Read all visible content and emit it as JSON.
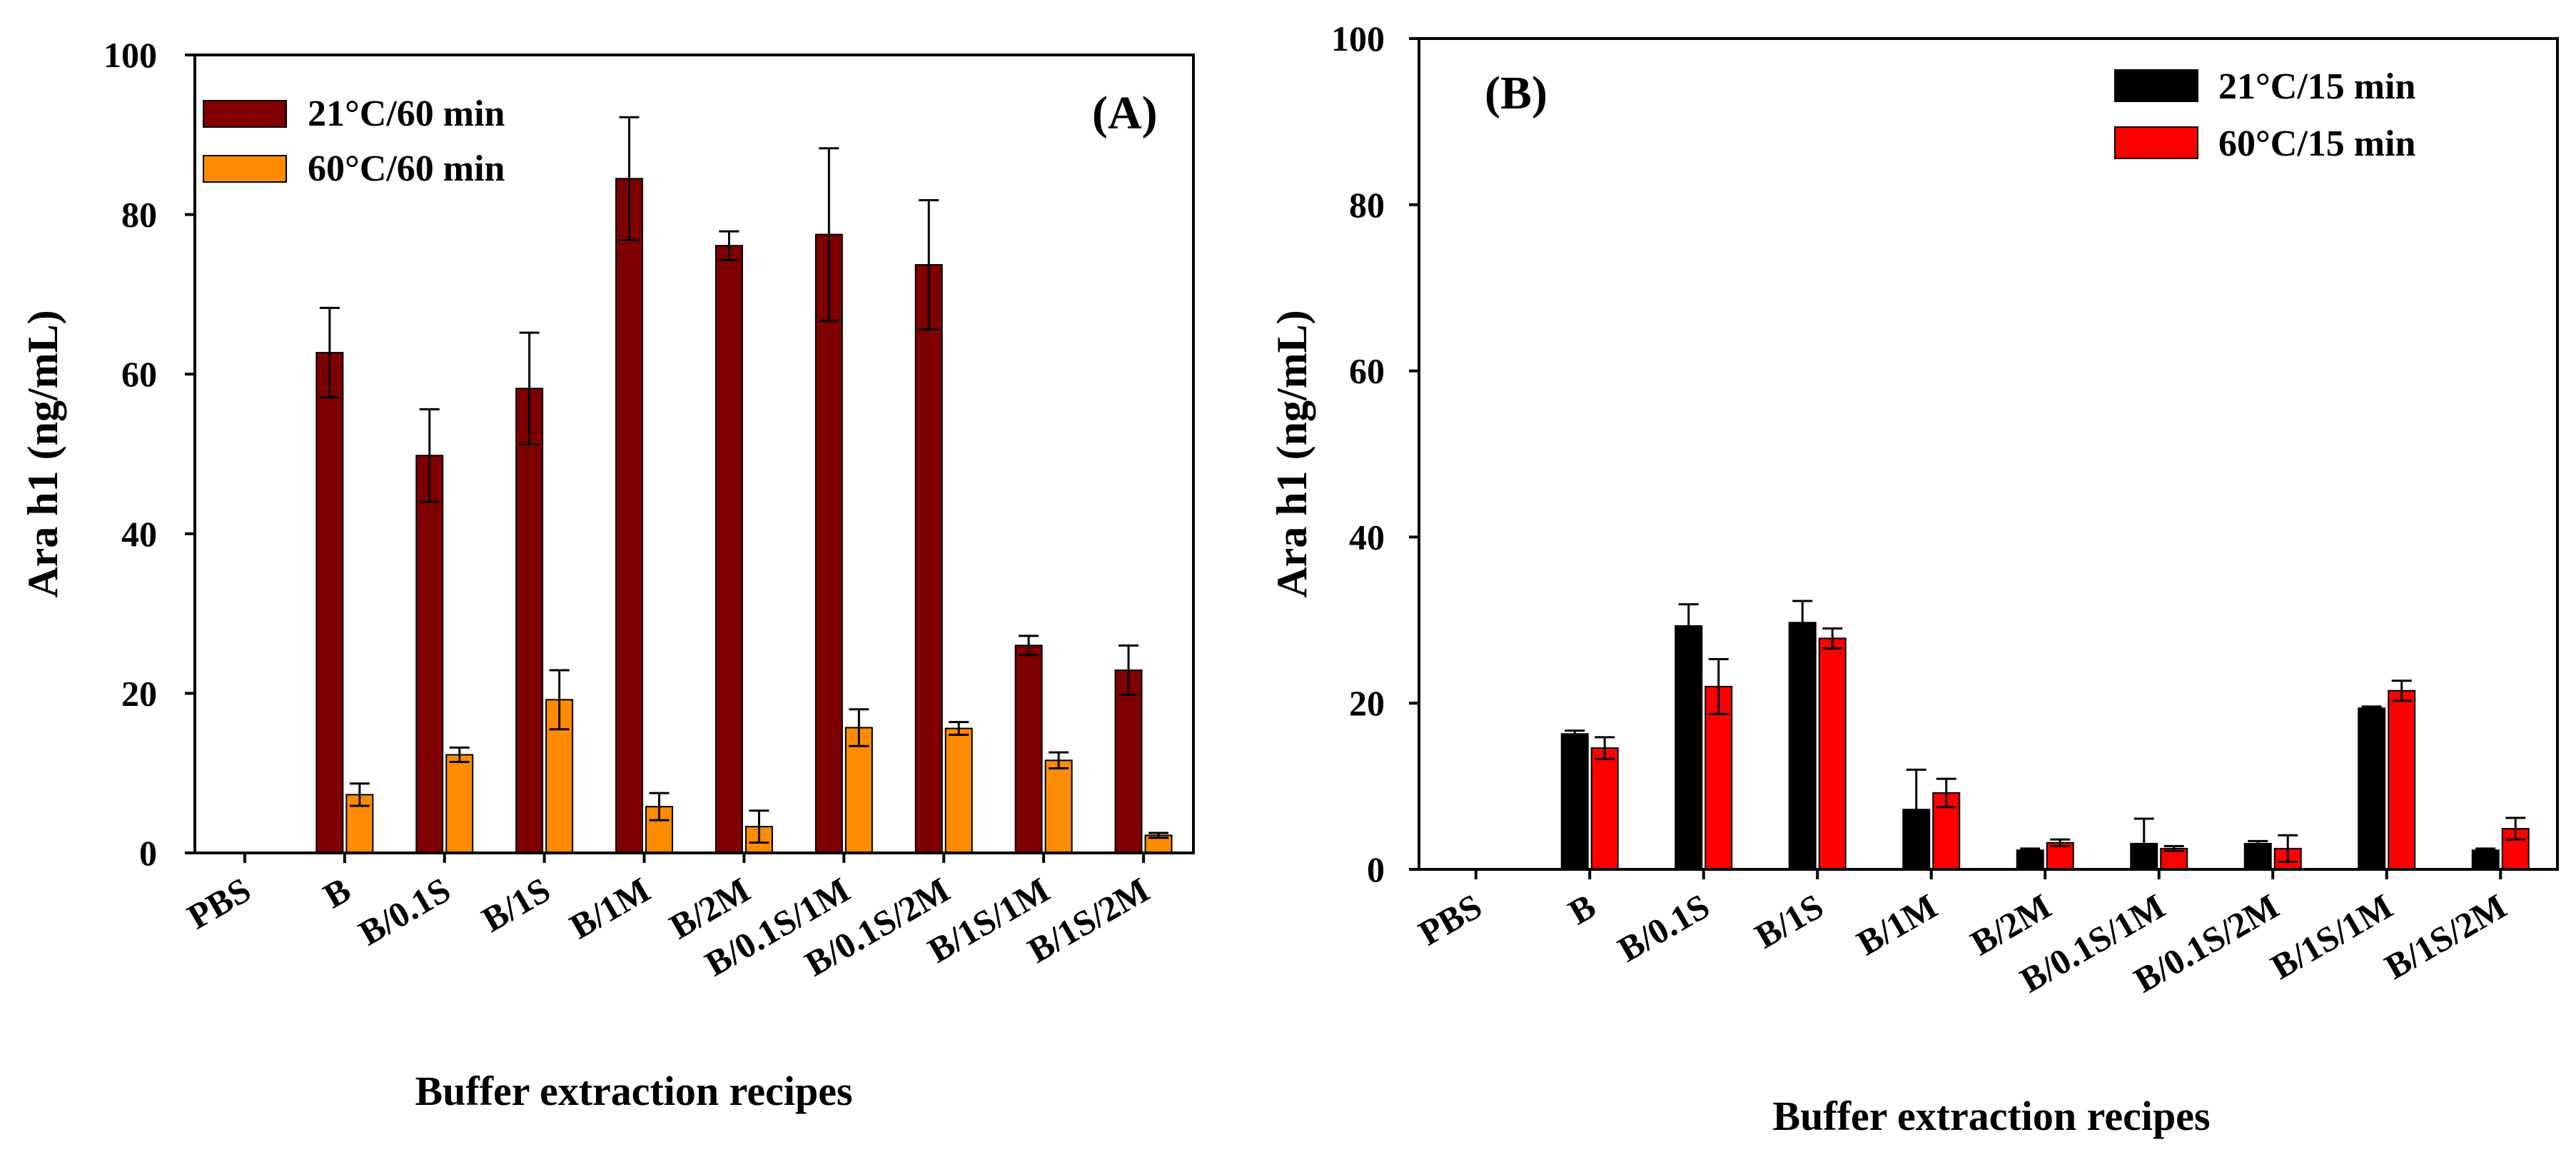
{
  "chart_data": [
    {
      "type": "bar",
      "panel_label": "(A)",
      "ylabel": "Ara h1 (ng/mL)",
      "xlabel": "Buffer extraction recipes",
      "ylim": [
        0,
        100
      ],
      "yticks": [
        "0",
        "20",
        "40",
        "60",
        "80",
        "100"
      ],
      "ytick_values": [
        0,
        20,
        40,
        60,
        80,
        100
      ],
      "legend_position": "top-left",
      "categories": [
        "PBS",
        "B",
        "B/0.1S",
        "B/1S",
        "B/1M",
        "B/2M",
        "B/0.1S/1M",
        "B/0.1S/2M",
        "B/1S/1M",
        "B/1S/2M"
      ],
      "series": [
        {
          "name": "21°C/60 min",
          "color": "#7f0000",
          "values": [
            0,
            62.7,
            49.8,
            58.2,
            84.5,
            76.1,
            77.5,
            73.7,
            26.0,
            22.9
          ],
          "errors": [
            0,
            5.6,
            5.8,
            7.0,
            7.7,
            1.8,
            10.8,
            8.1,
            1.2,
            3.1
          ]
        },
        {
          "name": "60°C/60 min",
          "color": "#ff8c00",
          "values": [
            0,
            7.3,
            12.3,
            19.2,
            5.8,
            3.3,
            15.7,
            15.6,
            11.6,
            2.2
          ],
          "errors": [
            0,
            1.4,
            0.9,
            3.7,
            1.7,
            2.0,
            2.3,
            0.8,
            1.0,
            0.3
          ]
        }
      ]
    },
    {
      "type": "bar",
      "panel_label": "(B)",
      "ylabel": "Ara h1 (ng/mL)",
      "xlabel": "Buffer extraction recipes",
      "ylim": [
        0,
        100
      ],
      "yticks": [
        "0",
        "20",
        "40",
        "60",
        "80",
        "100"
      ],
      "ytick_values": [
        0,
        20,
        40,
        60,
        80,
        100
      ],
      "legend_position": "top-right",
      "categories": [
        "PBS",
        "B",
        "B/0.1S",
        "B/1S",
        "B/1M",
        "B/2M",
        "B/0.1S/1M",
        "B/0.1S/2M",
        "B/1S/1M",
        "B/1S/2M"
      ],
      "series": [
        {
          "name": "21°C/15 min",
          "color": "#000000",
          "values": [
            0,
            16.3,
            29.3,
            29.7,
            7.2,
            2.3,
            3.1,
            3.1,
            19.4,
            2.3
          ],
          "errors": [
            0,
            0.4,
            2.6,
            2.6,
            4.8,
            0.2,
            3.0,
            0.3,
            0.2,
            0.2
          ]
        },
        {
          "name": "60°C/15 min",
          "color": "#ff0000",
          "values": [
            0,
            14.6,
            22.0,
            27.8,
            9.2,
            3.2,
            2.5,
            2.5,
            21.5,
            4.9
          ],
          "errors": [
            0,
            1.3,
            3.3,
            1.2,
            1.7,
            0.4,
            0.3,
            1.6,
            1.2,
            1.3
          ]
        }
      ]
    }
  ]
}
